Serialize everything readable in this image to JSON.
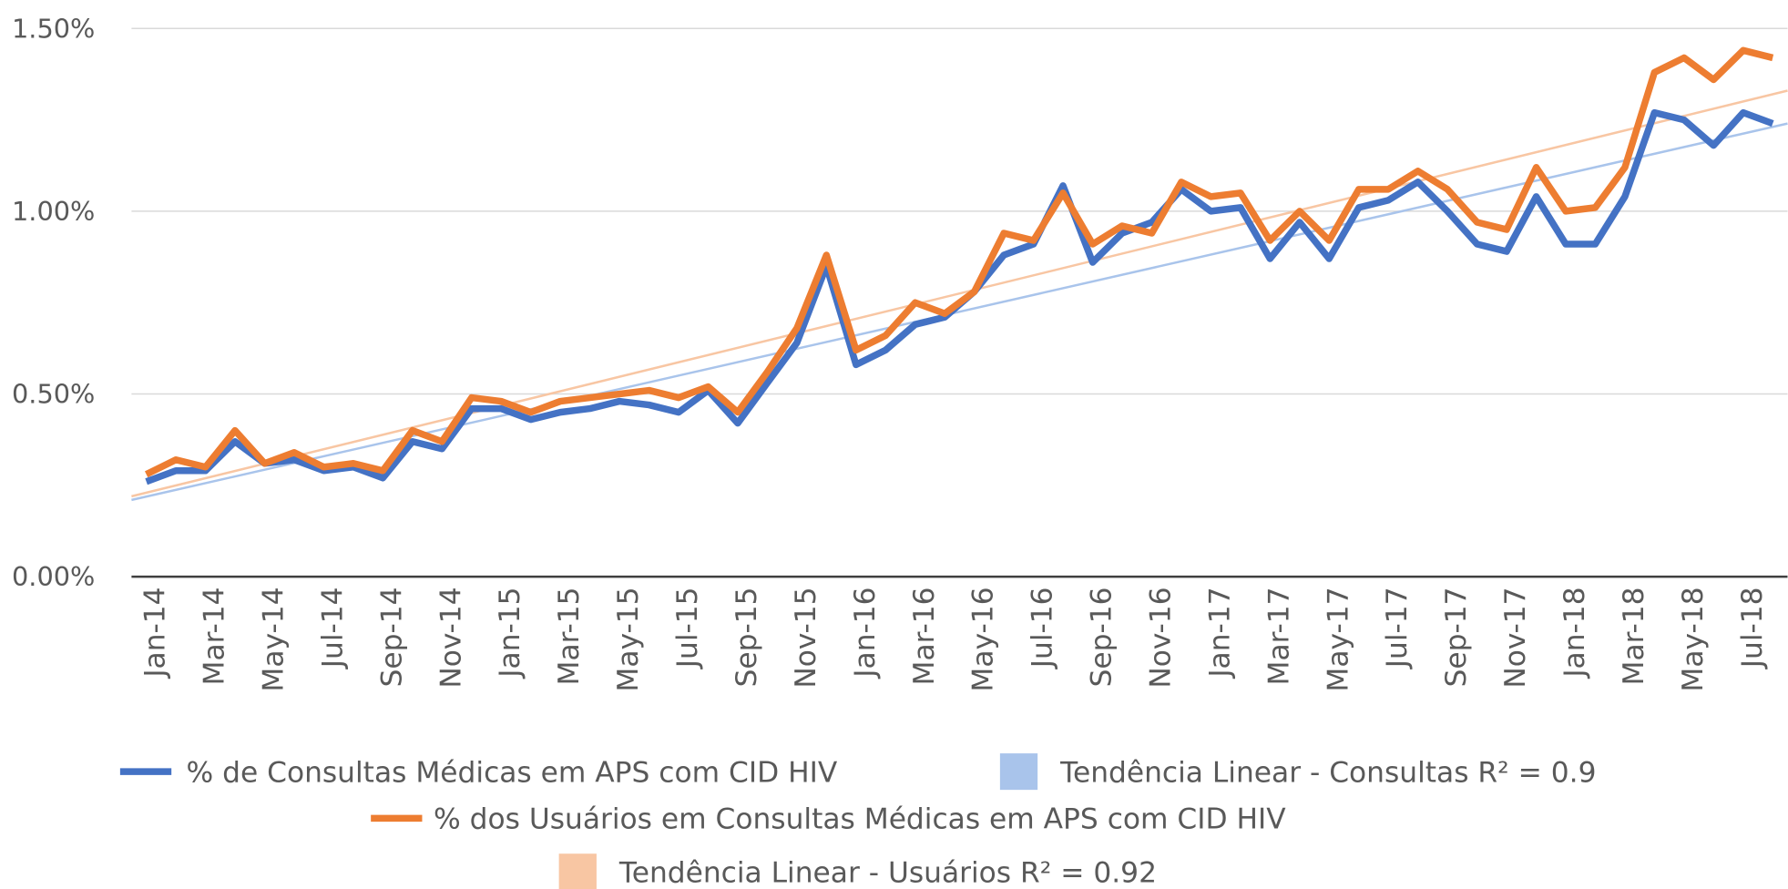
{
  "chart_data": {
    "type": "line",
    "categories": [
      "Jan-14",
      null,
      "Mar-14",
      null,
      "May-14",
      null,
      "Jul-14",
      null,
      "Sep-14",
      null,
      "Nov-14",
      null,
      "Jan-15",
      null,
      "Mar-15",
      null,
      "May-15",
      null,
      "Jul-15",
      null,
      "Sep-15",
      null,
      "Nov-15",
      null,
      "Jan-16",
      null,
      "Mar-16",
      null,
      "May-16",
      null,
      "Jul-16",
      null,
      "Sep-16",
      null,
      "Nov-16",
      null,
      "Jan-17",
      null,
      "Mar-17",
      null,
      "May-17",
      null,
      "Jul-17",
      null,
      "Sep-17",
      null,
      "Nov-17",
      null,
      "Jan-18",
      null,
      "Mar-18",
      null,
      "May-18",
      null,
      "Jul-18",
      null
    ],
    "series": [
      {
        "name": "% de Consultas Médicas em APS com CID HIV",
        "color": "#4472c4",
        "values": [
          0.26,
          0.29,
          0.29,
          0.37,
          0.31,
          0.32,
          0.29,
          0.3,
          0.27,
          0.37,
          0.35,
          0.46,
          0.46,
          0.43,
          0.45,
          0.46,
          0.48,
          0.47,
          0.45,
          0.51,
          0.42,
          0.53,
          0.64,
          0.85,
          0.58,
          0.62,
          0.69,
          0.71,
          0.78,
          0.88,
          0.91,
          1.07,
          0.86,
          0.94,
          0.97,
          1.06,
          1.0,
          1.01,
          0.87,
          0.97,
          0.87,
          1.01,
          1.03,
          1.08,
          1.0,
          0.91,
          0.89,
          1.04,
          0.91,
          0.91,
          1.04,
          1.27,
          1.25,
          1.18,
          1.27,
          1.24
        ]
      },
      {
        "name": "% dos Usuários em Consultas Médicas em APS com CID HIV",
        "color": "#ed7d31",
        "values": [
          0.28,
          0.32,
          0.3,
          0.4,
          0.31,
          0.34,
          0.3,
          0.31,
          0.29,
          0.4,
          0.37,
          0.49,
          0.48,
          0.45,
          0.48,
          0.49,
          0.5,
          0.51,
          0.49,
          0.52,
          0.45,
          0.56,
          0.68,
          0.88,
          0.62,
          0.66,
          0.75,
          0.72,
          0.78,
          0.94,
          0.92,
          1.05,
          0.91,
          0.96,
          0.94,
          1.08,
          1.04,
          1.05,
          0.92,
          1.0,
          0.92,
          1.06,
          1.06,
          1.11,
          1.06,
          0.97,
          0.95,
          1.12,
          1.0,
          1.01,
          1.12,
          1.38,
          1.42,
          1.36,
          1.44,
          1.42
        ]
      }
    ],
    "trendlines": [
      {
        "name": "Tendência Linear - Consultas R² = 0.9",
        "color": "#a9c4eb",
        "trend_start": 0.21,
        "trend_end": 1.24
      },
      {
        "name": "Tendência Linear - Usuários R² = 0.92",
        "color": "#f8c6a3",
        "trend_start": 0.22,
        "trend_end": 1.33
      }
    ],
    "ylim": [
      0,
      1.5
    ],
    "yticks": [
      {
        "value": 0,
        "label": "0.00%"
      },
      {
        "value": 0.5,
        "label": "0.50%"
      },
      {
        "value": 1,
        "label": "1.00%"
      },
      {
        "value": 1.5,
        "label": "1.50%"
      }
    ],
    "grid": true,
    "legend": "bottom"
  }
}
